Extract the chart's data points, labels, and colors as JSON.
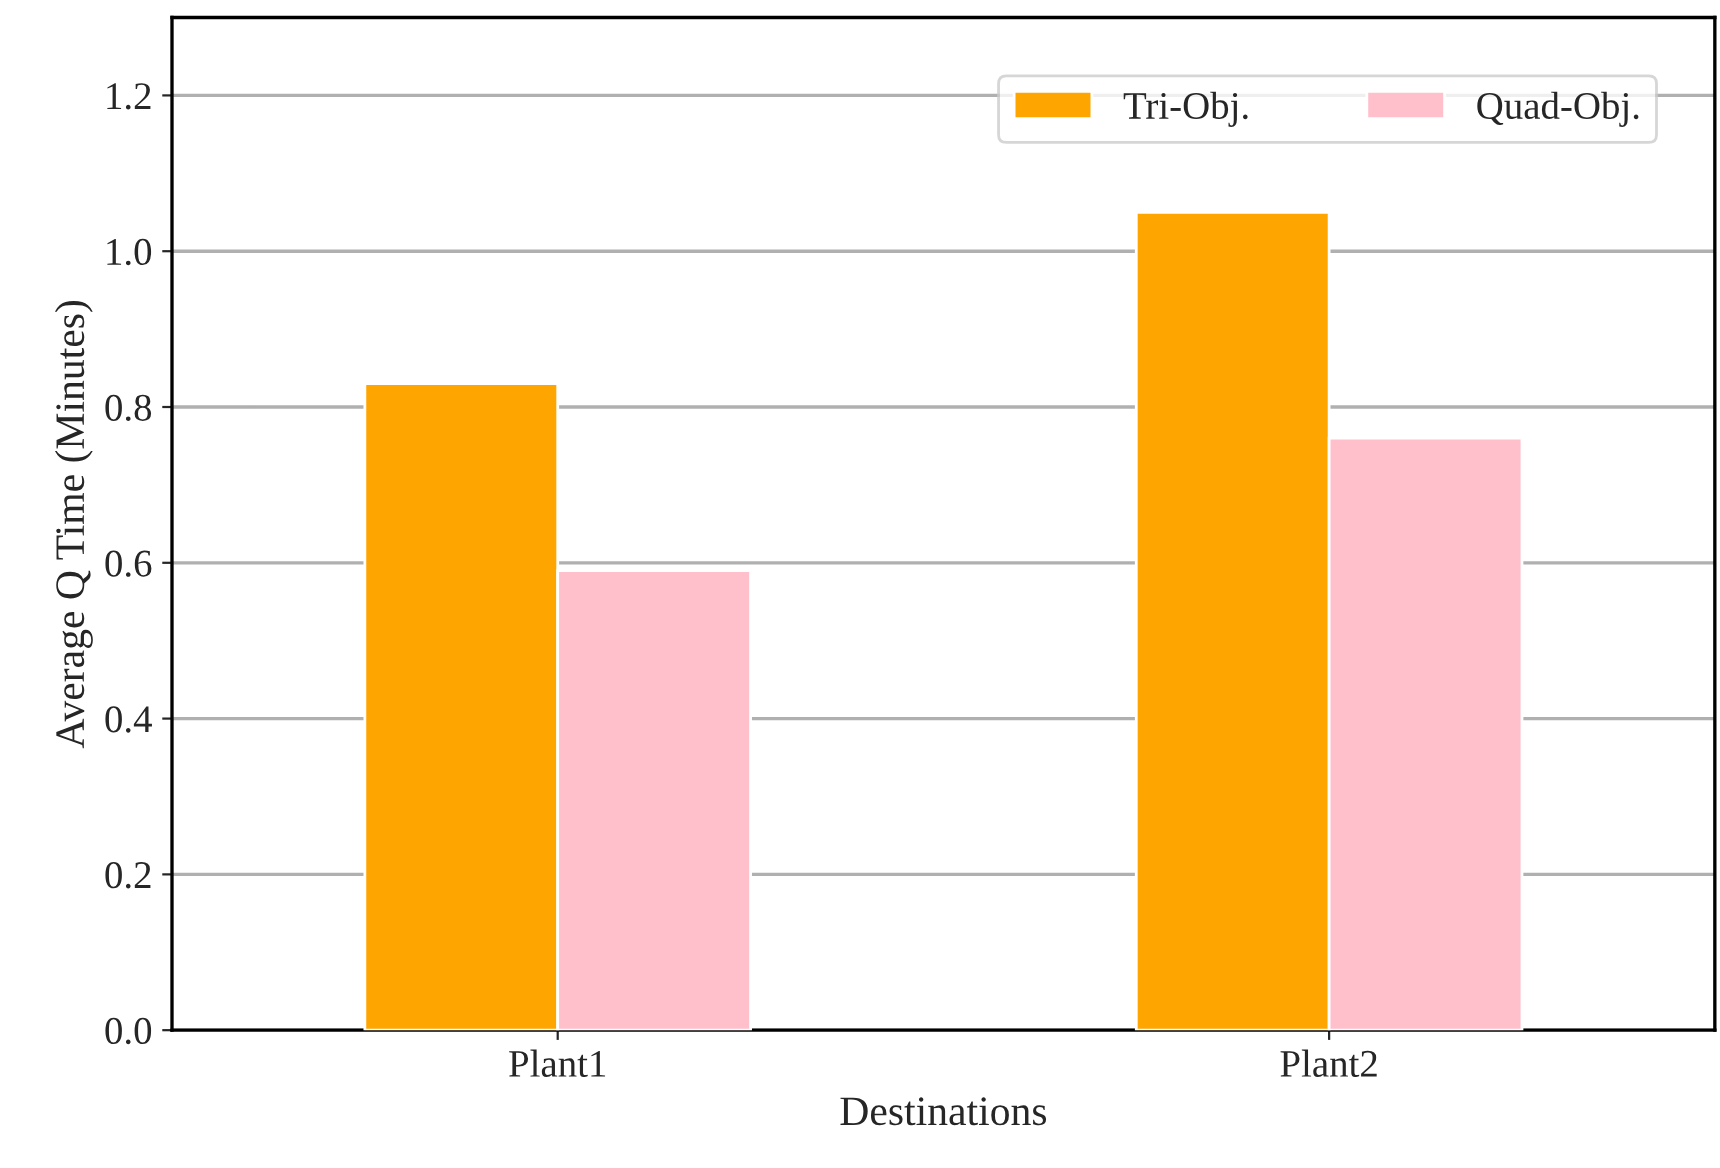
{
  "chart_data": {
    "type": "bar",
    "xlabel": "Destinations",
    "ylabel": "Average Q Time (Minutes)",
    "categories": [
      "Plant1",
      "Plant2"
    ],
    "series": [
      {
        "name": "Tri-Obj.",
        "color": "#ffa500",
        "values": [
          0.83,
          1.05
        ]
      },
      {
        "name": "Quad-Obj.",
        "color": "#ffc0cb",
        "values": [
          0.59,
          0.76
        ]
      }
    ],
    "ylim": [
      0,
      1.3
    ],
    "yticks": [
      {
        "value": 0,
        "label": "0.0"
      },
      0.2,
      0.4,
      0.6,
      0.8,
      {
        "value": 1,
        "label": "1.0"
      },
      1.2
    ],
    "grid": "y",
    "legend": "top right"
  }
}
